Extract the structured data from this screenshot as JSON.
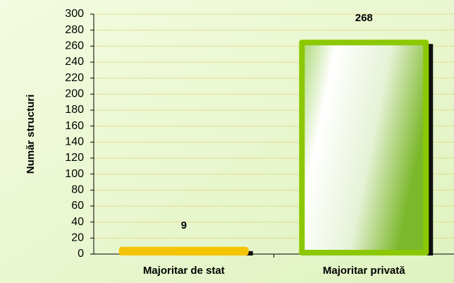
{
  "chart_data": {
    "type": "bar",
    "y_label": "Număr structuri",
    "categories": [
      "Majoritar de stat",
      "Majoritar privată"
    ],
    "values": [
      9,
      268
    ],
    "colors": [
      "#f5c400",
      "#8cc800"
    ],
    "ylim": [
      0,
      300
    ],
    "yticks": [
      0,
      20,
      40,
      60,
      80,
      100,
      120,
      140,
      160,
      180,
      200,
      220,
      240,
      260,
      280,
      300
    ],
    "grid": true
  }
}
